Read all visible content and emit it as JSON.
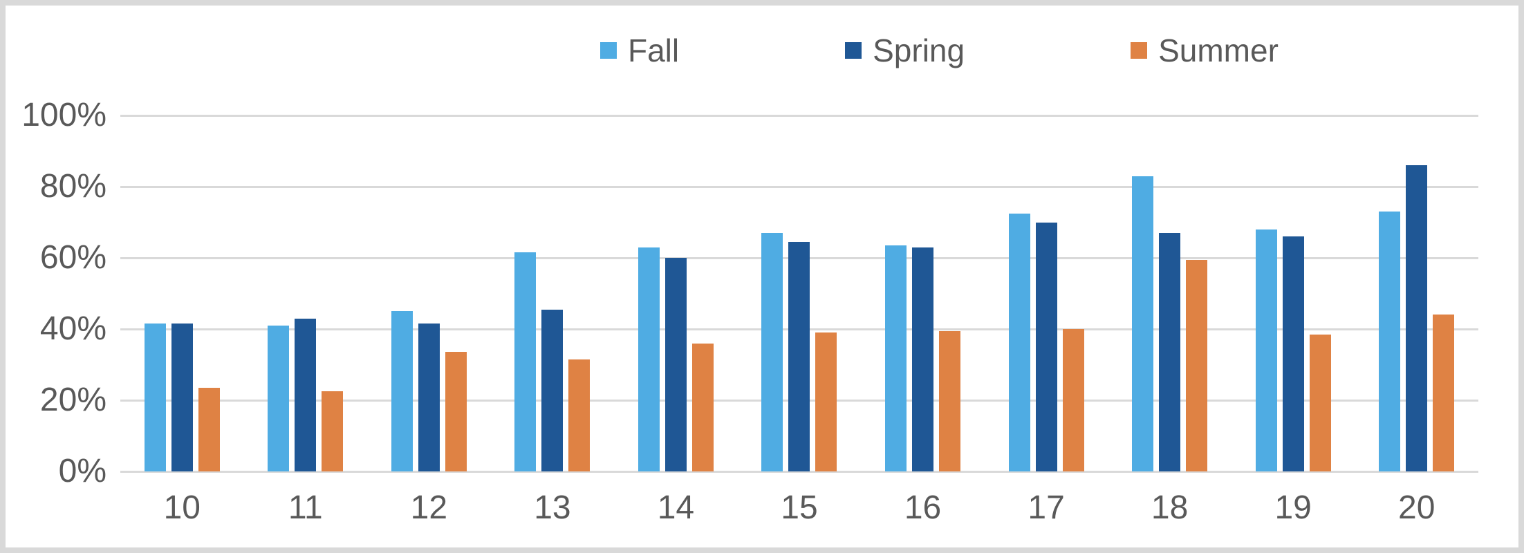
{
  "chart_data": {
    "type": "bar",
    "title": "",
    "categories": [
      "10",
      "11",
      "12",
      "13",
      "14",
      "15",
      "16",
      "17",
      "18",
      "19",
      "20"
    ],
    "series": [
      {
        "name": "Fall",
        "color": "#4FACE3",
        "values": [
          41.5,
          41,
          45,
          61.5,
          63,
          67,
          63.5,
          72.5,
          83,
          68,
          73
        ]
      },
      {
        "name": "Spring",
        "color": "#1F5795",
        "values": [
          41.5,
          43,
          41.5,
          45.5,
          60,
          64.5,
          63,
          70,
          67,
          66,
          86
        ]
      },
      {
        "name": "Summer",
        "color": "#DF8244",
        "values": [
          23.5,
          22.5,
          33.5,
          31.5,
          36,
          39,
          39.5,
          40,
          59.5,
          38.5,
          44
        ]
      }
    ],
    "xlabel": "",
    "ylabel": "",
    "ylim": [
      0,
      100
    ],
    "y_ticks": [
      "0%",
      "20%",
      "40%",
      "60%",
      "80%",
      "100%"
    ],
    "grid": true,
    "legend_position": "top"
  },
  "frame": {
    "border_color": "#D9D9D9",
    "background": "#FFFFFF",
    "gridline_color": "#D9D9D9",
    "text_color": "#595959"
  }
}
